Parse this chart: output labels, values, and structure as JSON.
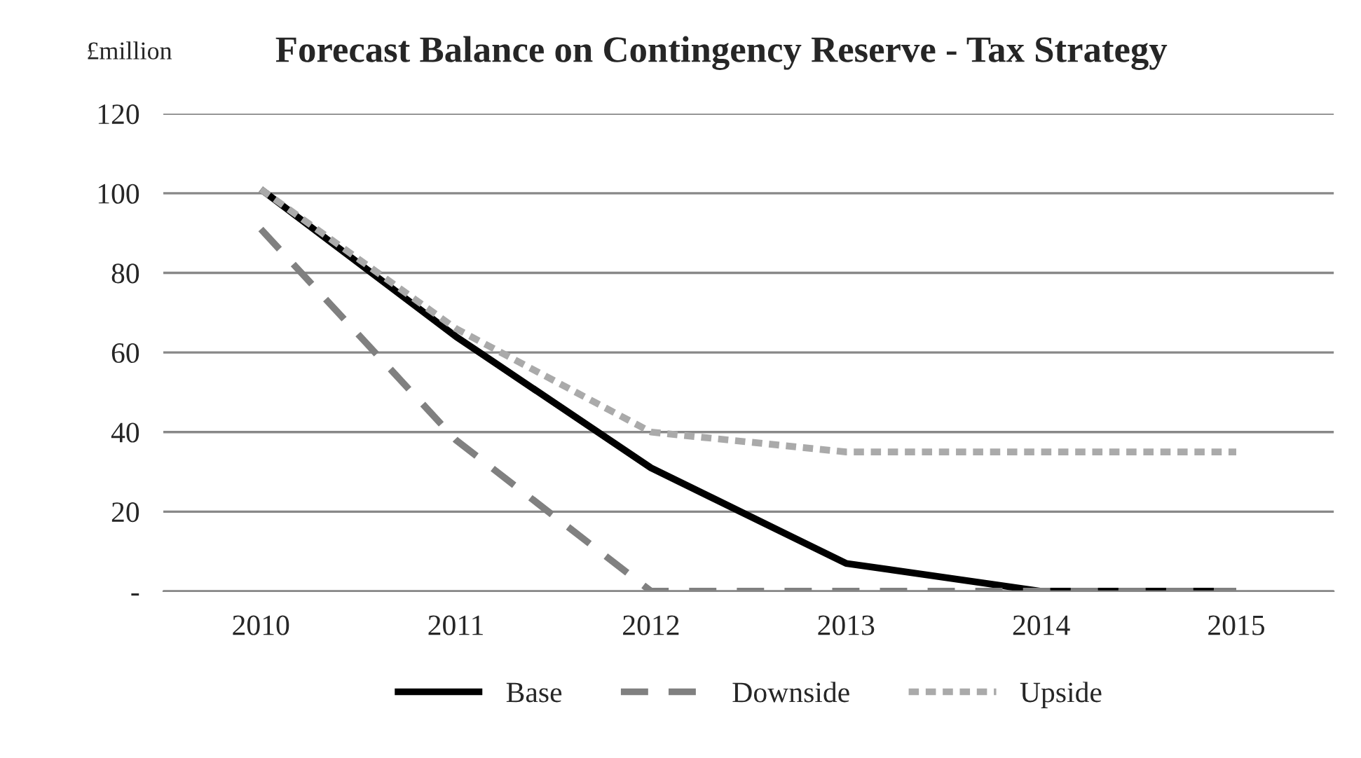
{
  "chart_data": {
    "type": "line",
    "title": "Forecast Balance on Contingency Reserve - Tax Strategy",
    "ylabel": "£million",
    "categories": [
      "2010",
      "2011",
      "2012",
      "2013",
      "2014",
      "2015"
    ],
    "series": [
      {
        "name": "Base",
        "color": "#000000",
        "line_style": "solid",
        "values": [
          101,
          64,
          31,
          7,
          0,
          0
        ]
      },
      {
        "name": "Downside",
        "color": "#808080",
        "line_style": "dashed",
        "values": [
          91,
          38,
          0,
          0,
          0,
          0
        ]
      },
      {
        "name": "Upside",
        "color": "#aaaaaa",
        "line_style": "dotted",
        "values": [
          101,
          66,
          40,
          35,
          35,
          35
        ]
      }
    ],
    "ylim": [
      0,
      120
    ],
    "yticks": [
      {
        "value": 0,
        "label": "-"
      },
      20,
      40,
      60,
      80,
      100,
      120
    ],
    "grid": "y",
    "legend": "bottom",
    "marker": "none"
  }
}
